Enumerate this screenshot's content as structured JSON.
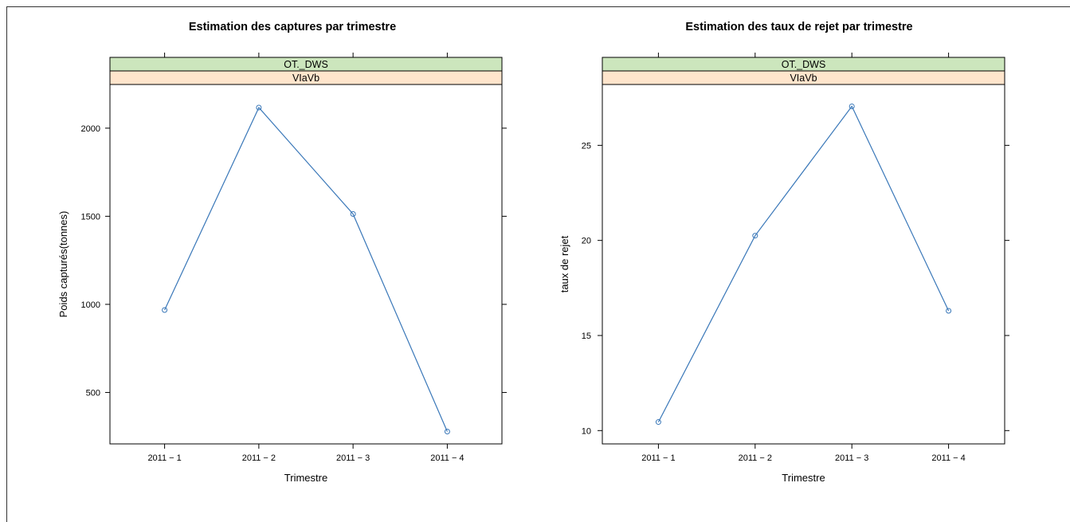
{
  "colors": {
    "series_line": "#3977b8",
    "strip_top": "#cce6bd",
    "strip_bottom": "#ffe5cc",
    "axis": "#000000"
  },
  "chart_data": [
    {
      "type": "line",
      "title": "Estimation des captures par trimestre",
      "xlabel": "Trimestre",
      "ylabel": "Poids capturés(tonnes)",
      "strips": [
        "OT._DWS",
        "VIaVb"
      ],
      "categories": [
        "2011 − 1",
        "2011 − 2",
        "2011 − 3",
        "2011 − 4"
      ],
      "series": [
        {
          "values": [
            968,
            2117,
            1513,
            278
          ]
        }
      ],
      "yticks": [
        "500",
        "1000",
        "1500",
        "2000"
      ],
      "ytick_values": [
        500,
        1000,
        1500,
        2000
      ],
      "ylim": [
        208,
        2248
      ],
      "xlim": [
        0.42,
        4.58
      ],
      "grid": false,
      "legend": "none"
    },
    {
      "type": "line",
      "title": "Estimation des taux de rejet par trimestre",
      "xlabel": "Trimestre",
      "ylabel": "taux de rejet",
      "strips": [
        "OT._DWS",
        "VIaVb"
      ],
      "categories": [
        "2011 − 1",
        "2011 − 2",
        "2011 − 3",
        "2011 − 4"
      ],
      "series": [
        {
          "values": [
            10.45,
            20.25,
            27.05,
            16.3
          ]
        }
      ],
      "yticks": [
        "10",
        "15",
        "20",
        "25"
      ],
      "ytick_values": [
        10,
        15,
        20,
        25
      ],
      "ylim": [
        9.3,
        28.2
      ],
      "xlim": [
        0.42,
        4.58
      ],
      "grid": false,
      "legend": "none"
    }
  ]
}
